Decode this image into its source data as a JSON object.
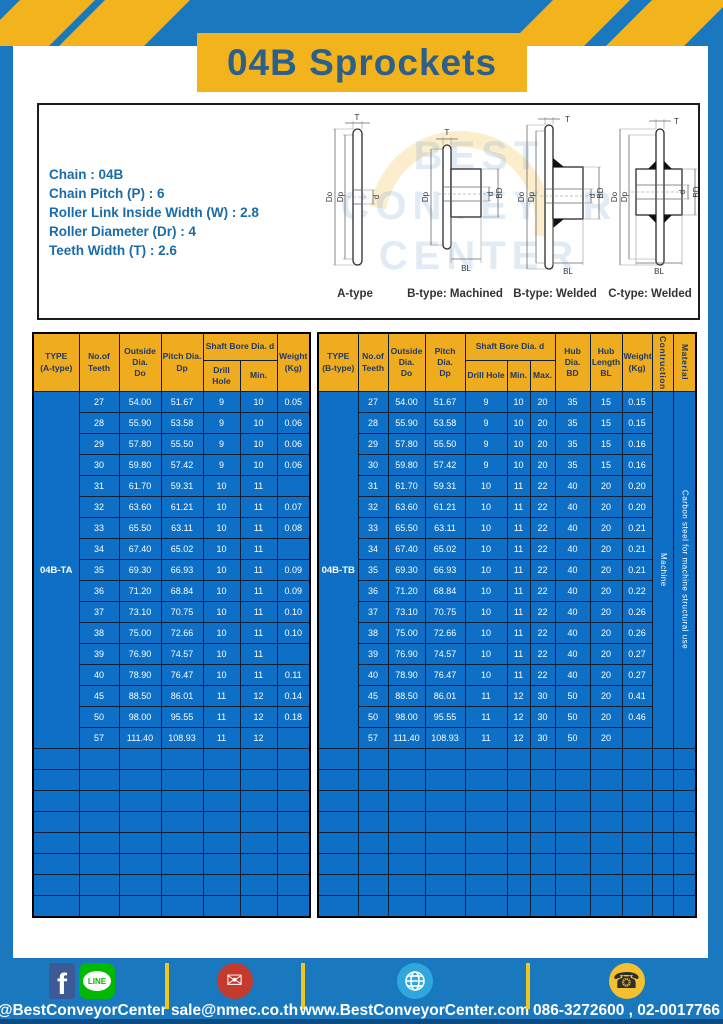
{
  "page": {
    "title": "04B Sprockets"
  },
  "specs": {
    "lines": [
      "Chain : 04B",
      "Chain Pitch (P) : 6",
      "Roller Link Inside Width (W) : 2.8",
      "Roller Diameter (Dr) : 4",
      "Teeth Width (T) : 2.6"
    ]
  },
  "diagram": {
    "captions": [
      "A-type",
      "B-type: Machined",
      "B-type: Welded",
      "C-type: Welded"
    ],
    "dims": {
      "t": "T",
      "do": "Do",
      "dp": "Dp",
      "d": "d",
      "bd": "BD",
      "bl": "BL"
    },
    "watermark": [
      "BEST",
      "CONVEYOR",
      "CENTER"
    ]
  },
  "table_a": {
    "type_label": "04B-TA",
    "columns": 7,
    "empty_rows": 8,
    "headers": {
      "type": "TYPE\n(A-type)",
      "teeth": "No.of\nTeeth",
      "outside": "Outside\nDia.\nDo",
      "pitch": "Pitch Dia.\nDp",
      "shaft": "Shaft Bore Dia. d",
      "drill": "Drill Hole",
      "min": "Min.",
      "weight": "Weight\n(Kg)"
    },
    "rows": [
      [
        "27",
        "54.00",
        "51.67",
        "9",
        "10",
        "0.05"
      ],
      [
        "28",
        "55.90",
        "53.58",
        "9",
        "10",
        "0.06"
      ],
      [
        "29",
        "57.80",
        "55.50",
        "9",
        "10",
        "0.06"
      ],
      [
        "30",
        "59.80",
        "57.42",
        "9",
        "10",
        "0.06"
      ],
      [
        "31",
        "61.70",
        "59.31",
        "10",
        "11",
        ""
      ],
      [
        "32",
        "63.60",
        "61.21",
        "10",
        "11",
        "0.07"
      ],
      [
        "33",
        "65.50",
        "63.11",
        "10",
        "11",
        "0.08"
      ],
      [
        "34",
        "67.40",
        "65.02",
        "10",
        "11",
        ""
      ],
      [
        "35",
        "69.30",
        "66.93",
        "10",
        "11",
        "0.09"
      ],
      [
        "36",
        "71.20",
        "68.84",
        "10",
        "11",
        "0.09"
      ],
      [
        "37",
        "73.10",
        "70.75",
        "10",
        "11",
        "0.10"
      ],
      [
        "38",
        "75.00",
        "72.66",
        "10",
        "11",
        "0.10"
      ],
      [
        "39",
        "76.90",
        "74.57",
        "10",
        "11",
        ""
      ],
      [
        "40",
        "78.90",
        "76.47",
        "10",
        "11",
        "0.11"
      ],
      [
        "45",
        "88.50",
        "86.01",
        "11",
        "12",
        "0.14"
      ],
      [
        "50",
        "98.00",
        "95.55",
        "11",
        "12",
        "0.18"
      ],
      [
        "57",
        "111.40",
        "108.93",
        "11",
        "12",
        ""
      ]
    ]
  },
  "table_b": {
    "type_label": "04B-TB",
    "columns": 12,
    "empty_rows": 8,
    "construction": "Machine",
    "material": "Carbon steel for machine structural use",
    "headers": {
      "type": "TYPE\n(B-type)",
      "teeth": "No.of\nTeeth",
      "outside": "Outside\nDia.\nDo",
      "pitch": "Pitch Dia.\nDp",
      "shaft": "Shaft Bore Dia. d",
      "drill": "Drill Hole",
      "min": "Min.",
      "max": "Max.",
      "hub_dia": "Hub Dia.\nBD",
      "hub_len": "Hub\nLength\nBL",
      "weight": "Weight\n(Kg)",
      "construction": "Contruction",
      "material": "Material"
    },
    "rows": [
      [
        "27",
        "54.00",
        "51.67",
        "9",
        "10",
        "20",
        "35",
        "15",
        "0.15"
      ],
      [
        "28",
        "55.90",
        "53.58",
        "9",
        "10",
        "20",
        "35",
        "15",
        "0.15"
      ],
      [
        "29",
        "57.80",
        "55.50",
        "9",
        "10",
        "20",
        "35",
        "15",
        "0.16"
      ],
      [
        "30",
        "59.80",
        "57.42",
        "9",
        "10",
        "20",
        "35",
        "15",
        "0.16"
      ],
      [
        "31",
        "61.70",
        "59.31",
        "10",
        "11",
        "22",
        "40",
        "20",
        "0.20"
      ],
      [
        "32",
        "63.60",
        "61.21",
        "10",
        "11",
        "22",
        "40",
        "20",
        "0.20"
      ],
      [
        "33",
        "65.50",
        "63.11",
        "10",
        "11",
        "22",
        "40",
        "20",
        "0.21"
      ],
      [
        "34",
        "67.40",
        "65.02",
        "10",
        "11",
        "22",
        "40",
        "20",
        "0.21"
      ],
      [
        "35",
        "69.30",
        "66.93",
        "10",
        "11",
        "22",
        "40",
        "20",
        "0.21"
      ],
      [
        "36",
        "71.20",
        "68.84",
        "10",
        "11",
        "22",
        "40",
        "20",
        "0.22"
      ],
      [
        "37",
        "73.10",
        "70.75",
        "10",
        "11",
        "22",
        "40",
        "20",
        "0.26"
      ],
      [
        "38",
        "75.00",
        "72.66",
        "10",
        "11",
        "22",
        "40",
        "20",
        "0.26"
      ],
      [
        "39",
        "76.90",
        "74.57",
        "10",
        "11",
        "22",
        "40",
        "20",
        "0.27"
      ],
      [
        "40",
        "78.90",
        "76.47",
        "10",
        "11",
        "22",
        "40",
        "20",
        "0.27"
      ],
      [
        "45",
        "88.50",
        "86.01",
        "11",
        "12",
        "30",
        "50",
        "20",
        "0.41"
      ],
      [
        "50",
        "98.00",
        "95.55",
        "11",
        "12",
        "30",
        "50",
        "20",
        "0.46"
      ],
      [
        "57",
        "111.40",
        "108.93",
        "11",
        "12",
        "30",
        "50",
        "20",
        ""
      ]
    ]
  },
  "footer": {
    "social_label": "@BestConveyorCenter",
    "email": "sale@nmec.co.th",
    "website": "www.BestConveyorCenter.com",
    "phones": "086-3272600 , 02-0017766",
    "fb_letter": "f",
    "line_text": "LINE",
    "mail_glyph": "✉",
    "phone_glyph": "☎"
  },
  "colors": {
    "page_blue": "#1A78BE",
    "cell_blue": "#0D6FC5",
    "header_yellow": "#EFAC1E",
    "banner_yellow": "#F2B31D",
    "navy_text": "#1F3864"
  }
}
